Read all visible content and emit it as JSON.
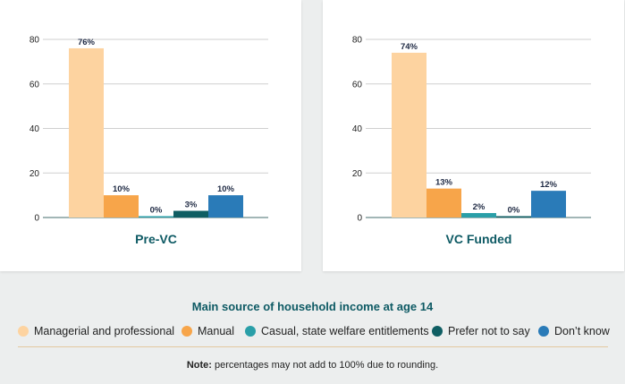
{
  "chart_data": [
    {
      "type": "bar",
      "title": "Pre-VC",
      "categories": [
        "Managerial and professional",
        "Manual",
        "Casual, state welfare entitlements",
        "Prefer not to say",
        "Don't know"
      ],
      "values": [
        76,
        10,
        0,
        3,
        10
      ],
      "data_labels": [
        "76%",
        "10%",
        "0%",
        "3%",
        "10%"
      ],
      "ylim": [
        0,
        80
      ],
      "yticks": [
        0,
        20,
        40,
        60,
        80
      ],
      "xlabel": "",
      "ylabel": "",
      "grid": true
    },
    {
      "type": "bar",
      "title": "VC Funded",
      "categories": [
        "Managerial and professional",
        "Manual",
        "Casual, state welfare entitlements",
        "Prefer not to say",
        "Don't know"
      ],
      "values": [
        74,
        13,
        2,
        0,
        12
      ],
      "data_labels": [
        "74%",
        "13%",
        "2%",
        "0%",
        "12%"
      ],
      "ylim": [
        0,
        80
      ],
      "yticks": [
        0,
        20,
        40,
        60,
        80
      ],
      "xlabel": "",
      "ylabel": "",
      "grid": true
    }
  ],
  "colors": [
    "#fdd3a0",
    "#f7a54a",
    "#2a9fa8",
    "#0f5e63",
    "#2a7bb8"
  ],
  "legend": {
    "title": "Main source of household income at age 14",
    "items": [
      {
        "label": "Managerial and professional",
        "color": "#fdd3a0"
      },
      {
        "label": "Manual",
        "color": "#f7a54a"
      },
      {
        "label": "Casual, state welfare entitlements",
        "color": "#2a9fa8"
      },
      {
        "label": "Prefer not to say",
        "color": "#0f5e63"
      },
      {
        "label": "Don’t know",
        "color": "#2a7bb8"
      }
    ]
  },
  "note": {
    "bold": "Note:",
    "text": " percentages may not add to 100% due to rounding."
  }
}
